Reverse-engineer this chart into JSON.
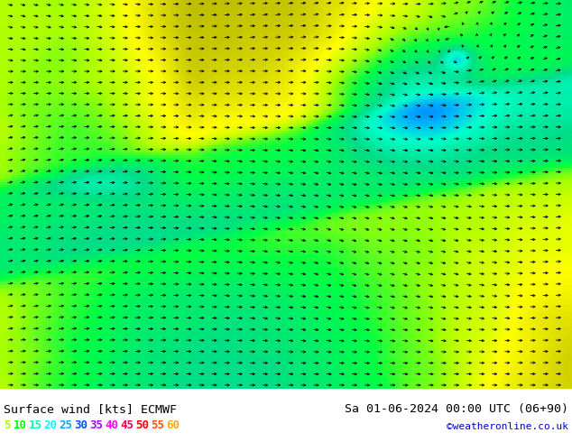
{
  "title_left": "Surface wind [kts] ECMWF",
  "title_right": "Sa 01-06-2024 00:00 UTC (06+90)",
  "credit": "©weatheronline.co.uk",
  "legend_values": [
    5,
    10,
    15,
    20,
    25,
    30,
    35,
    40,
    45,
    50,
    55,
    60
  ],
  "legend_colors": [
    "#aaff00",
    "#00ff00",
    "#00ffaa",
    "#00ffff",
    "#00aaff",
    "#0055ff",
    "#aa00ff",
    "#ff00ff",
    "#ff0055",
    "#ff0000",
    "#ff5500",
    "#ffaa00"
  ],
  "colormap_colors": [
    "#00ff00",
    "#44ff00",
    "#88ff00",
    "#ccff00",
    "#ffff00",
    "#ffcc00",
    "#ff8800",
    "#ff4400",
    "#ff0000",
    "#cc0000",
    "#880000",
    "#440000",
    "#ffff88",
    "#ffffcc",
    "#ffff00",
    "#ccff00",
    "#88ff00",
    "#00ff88",
    "#00ffff",
    "#00aaff",
    "#0055ff",
    "#0000ff",
    "#000088"
  ],
  "bg_color": "#ffffff",
  "map_bg": "#aaddff",
  "bottom_bar_height": 0.12,
  "figsize": [
    6.34,
    4.9
  ],
  "dpi": 100,
  "wind_colormap": [
    [
      0.0,
      "#006600"
    ],
    [
      0.05,
      "#00aa00"
    ],
    [
      0.1,
      "#00ff00"
    ],
    [
      0.15,
      "#44ff44"
    ],
    [
      0.2,
      "#aaff00"
    ],
    [
      0.25,
      "#ffff00"
    ],
    [
      0.3,
      "#ffcc00"
    ],
    [
      0.35,
      "#ff8800"
    ],
    [
      0.4,
      "#ff4400"
    ],
    [
      0.45,
      "#ff0000"
    ],
    [
      0.5,
      "#cc00cc"
    ],
    [
      0.55,
      "#8800ff"
    ],
    [
      0.6,
      "#0000ff"
    ],
    [
      0.7,
      "#00aaff"
    ],
    [
      0.8,
      "#00ffff"
    ],
    [
      0.9,
      "#aaffff"
    ],
    [
      1.0,
      "#ffffff"
    ]
  ]
}
